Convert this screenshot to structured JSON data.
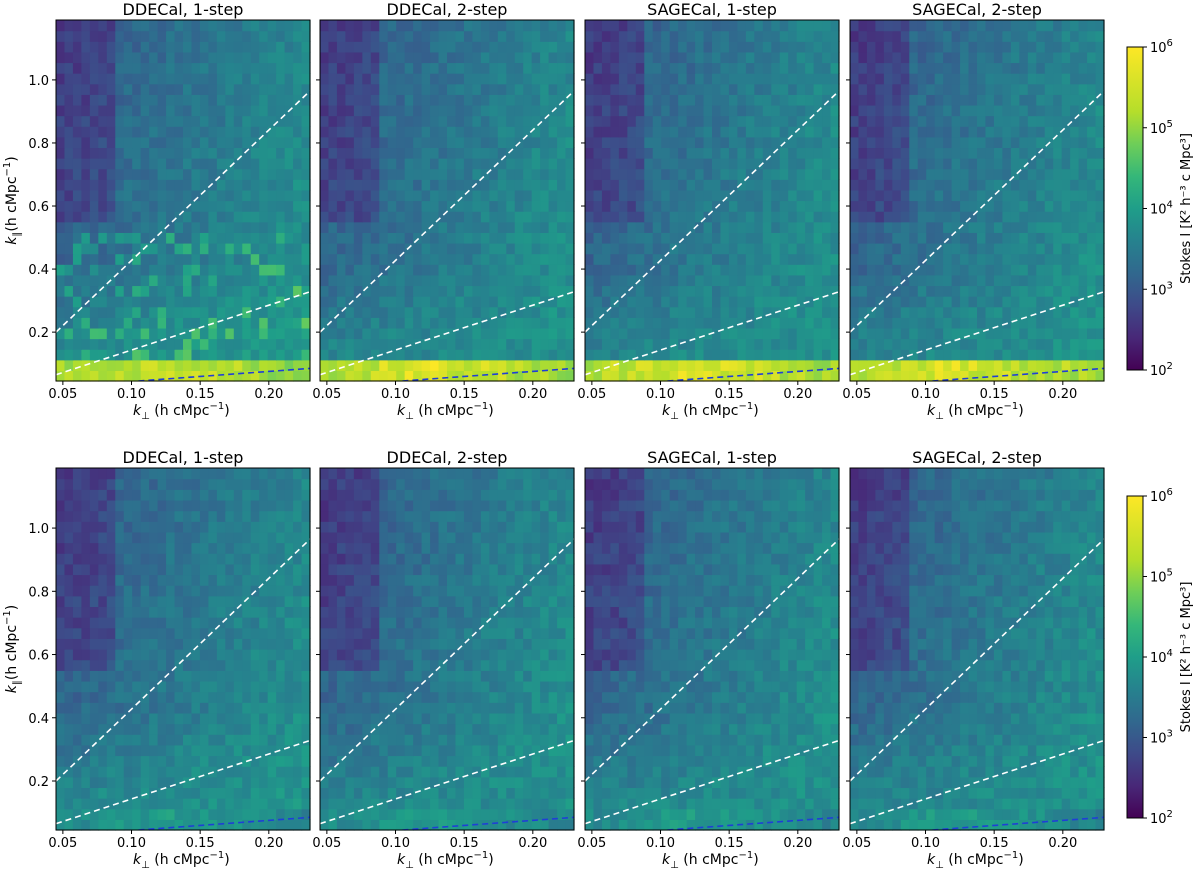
{
  "colors": {
    "colormap": "viridis",
    "wedge_lines": "#ffffff",
    "horizon_line": "#1f3fd6",
    "frame": "#000000"
  },
  "chart_data": {
    "type": "heatmap",
    "scale": "log",
    "layout": "2 rows x 4 columns of panels",
    "panel_titles": [
      "DDECal, 1-step",
      "DDECal, 2-step",
      "SAGECal, 1-step",
      "SAGECal, 2-step"
    ],
    "xlabel": "k⊥ (h cMpc⁻¹)",
    "ylabel": "k∥ (h cMpc⁻¹)",
    "xlim": [
      0.045,
      0.23
    ],
    "ylim": [
      0.045,
      1.19
    ],
    "xticks": [
      0.05,
      0.1,
      0.15,
      0.2
    ],
    "xtick_labels": [
      "0.05",
      "0.10",
      "0.15",
      "0.20"
    ],
    "yticks": [
      0.2,
      0.4,
      0.6,
      0.8,
      1.0
    ],
    "ytick_labels": [
      "0.2",
      "0.4",
      "0.6",
      "0.8",
      "1.0"
    ],
    "colorbar": {
      "label": "Stokes I [K² h⁻³ c Mpc³]",
      "range": [
        100,
        1000000
      ],
      "tick_labels": [
        "10²",
        "10³",
        "10⁴",
        "10⁵",
        "10⁶"
      ],
      "tick_values": [
        100,
        1000,
        10000,
        100000,
        1000000
      ]
    },
    "lines": [
      {
        "style": "dashed",
        "color": "white",
        "points": [
          [
            0.045,
            0.2
          ],
          [
            0.23,
            0.965
          ]
        ]
      },
      {
        "style": "dashed",
        "color": "white",
        "points": [
          [
            0.045,
            0.065
          ],
          [
            0.23,
            0.328
          ]
        ]
      },
      {
        "style": "dashed",
        "color": "blue",
        "points": [
          [
            0.105,
            0.045
          ],
          [
            0.23,
            0.085
          ]
        ]
      }
    ],
    "rows": [
      {
        "panels": [
          {
            "title": "DDECal, 1-step",
            "low_k_band_log10": 5.7,
            "wedge_log10": 4.2,
            "bright_spots": true
          },
          {
            "title": "DDECal, 2-step",
            "low_k_band_log10": 5.8,
            "wedge_log10": 4.0,
            "bright_spots": false
          },
          {
            "title": "SAGECal, 1-step",
            "low_k_band_log10": 5.8,
            "wedge_log10": 4.0,
            "bright_spots": false
          },
          {
            "title": "SAGECal, 2-step",
            "low_k_band_log10": 5.8,
            "wedge_log10": 4.0,
            "bright_spots": false
          }
        ]
      },
      {
        "panels": [
          {
            "title": "DDECal, 1-step",
            "low_k_band_log10": 4.2,
            "wedge_log10": 4.1,
            "bright_spots": false
          },
          {
            "title": "DDECal, 2-step",
            "low_k_band_log10": 4.2,
            "wedge_log10": 4.0,
            "bright_spots": false
          },
          {
            "title": "SAGECal, 1-step",
            "low_k_band_log10": 4.2,
            "wedge_log10": 4.0,
            "bright_spots": false
          },
          {
            "title": "SAGECal, 2-step",
            "low_k_band_log10": 4.2,
            "wedge_log10": 4.0,
            "bright_spots": false
          }
        ]
      }
    ]
  }
}
